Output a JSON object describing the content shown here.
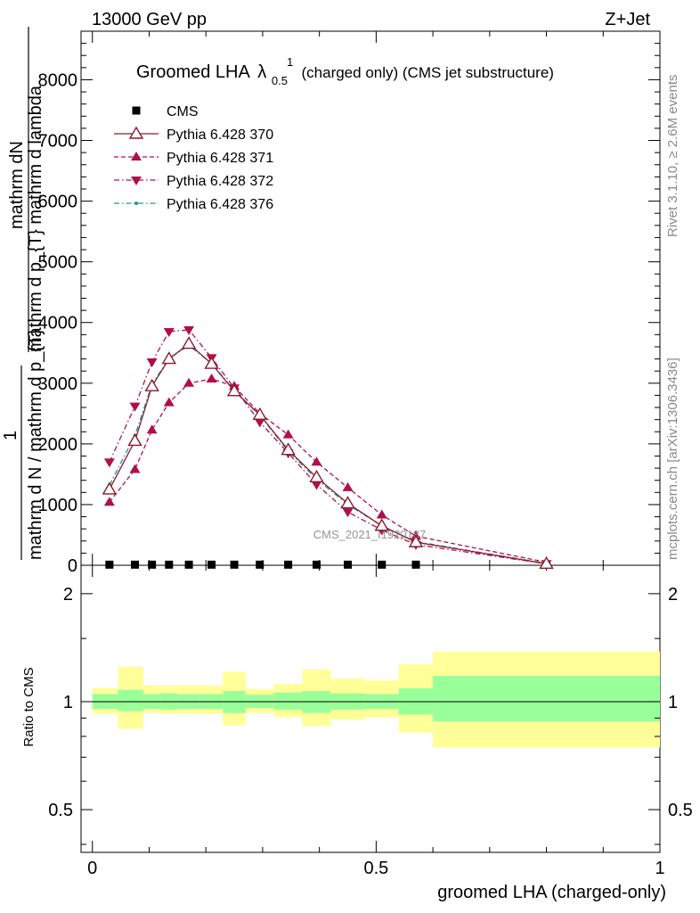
{
  "header": {
    "left": "13000 GeV pp",
    "right": "Z+Jet"
  },
  "plot": {
    "title_main": "Groomed LHA",
    "title_lambda": "λ",
    "title_sup": "1",
    "title_sub": "0.5",
    "title_rest": "(charged only) (CMS jet substructure)",
    "watermark": "CMS_2021_I1920187"
  },
  "side_text": {
    "rivet": "Rivet 3.1.10, ≥ 2.6M events",
    "mcplots": "mcplots.cern.ch [arXiv:1306.3436]"
  },
  "ylabel_main": {
    "numerator": "mathrm dN",
    "denominator": "mathrm d p_{T} mathrm d lambda",
    "one": "1",
    "one_denominator": "mathrm d N / mathrm d p_{T}"
  },
  "ylabel_ratio": "Ratio to CMS",
  "xlabel": "groomed LHA (charged-only)",
  "legend": [
    {
      "name": "CMS",
      "color": "#000000",
      "marker": "square",
      "line": "none"
    },
    {
      "name": "Pythia 6.428 370",
      "color": "#8b1a2e",
      "marker": "triangle-open",
      "line": "solid"
    },
    {
      "name": "Pythia 6.428 371",
      "color": "#b0104a",
      "marker": "triangle-up",
      "line": "dashed"
    },
    {
      "name": "Pythia 6.428 372",
      "color": "#b0104a",
      "marker": "triangle-down",
      "line": "dashdot"
    },
    {
      "name": "Pythia 6.428 376",
      "color": "#1a9a8a",
      "marker": "dot",
      "line": "dashdot"
    }
  ],
  "chart_data": {
    "type": "line",
    "x": [
      0.03,
      0.075,
      0.105,
      0.135,
      0.17,
      0.21,
      0.25,
      0.295,
      0.345,
      0.395,
      0.45,
      0.51,
      0.57,
      0.8
    ],
    "xlim": [
      -0.02,
      1.0
    ],
    "ylim": [
      0,
      8800
    ],
    "yticks": [
      0,
      1000,
      2000,
      3000,
      4000,
      5000,
      6000,
      7000,
      8000
    ],
    "xticks": [
      0,
      0.5,
      1
    ],
    "xtick_labels": [
      "0",
      "0.5",
      "1"
    ],
    "series": [
      {
        "name": "CMS",
        "values": [
          10,
          10,
          10,
          10,
          10,
          10,
          10,
          10,
          10,
          10,
          10,
          10,
          10,
          null
        ]
      },
      {
        "name": "Pythia 6.428 370",
        "values": [
          1250,
          2050,
          2950,
          3400,
          3650,
          3320,
          2870,
          2480,
          1900,
          1450,
          1020,
          650,
          380,
          25
        ]
      },
      {
        "name": "Pythia 6.428 371",
        "values": [
          1040,
          1580,
          2230,
          2680,
          3000,
          3070,
          2950,
          2500,
          2150,
          1700,
          1280,
          830,
          480,
          50
        ]
      },
      {
        "name": "Pythia 6.428 372",
        "values": [
          1700,
          2620,
          3350,
          3850,
          3880,
          3420,
          2920,
          2360,
          1850,
          1330,
          880,
          580,
          340,
          25
        ]
      },
      {
        "name": "Pythia 6.428 376",
        "values": [
          1320,
          2140,
          2980,
          3410,
          3620,
          3330,
          2880,
          2470,
          1880,
          1420,
          1000,
          650,
          390,
          30
        ]
      }
    ],
    "ratio": {
      "ylim": [
        0.38,
        2.4
      ],
      "yticks": [
        0.5,
        1,
        2
      ],
      "ytick_labels": [
        "0.5",
        "1",
        "2"
      ],
      "bin_edges": [
        0,
        0.045,
        0.09,
        0.12,
        0.15,
        0.19,
        0.23,
        0.27,
        0.32,
        0.37,
        0.42,
        0.48,
        0.54,
        0.6,
        1.0
      ],
      "stat_low": [
        0.955,
        0.94,
        0.955,
        0.95,
        0.955,
        0.955,
        0.93,
        0.96,
        0.95,
        0.93,
        0.95,
        0.955,
        0.92,
        0.88
      ],
      "stat_high": [
        1.05,
        1.08,
        1.05,
        1.055,
        1.05,
        1.05,
        1.07,
        1.045,
        1.06,
        1.07,
        1.055,
        1.05,
        1.09,
        1.18
      ],
      "tot_low": [
        0.925,
        0.84,
        0.93,
        0.925,
        0.925,
        0.925,
        0.86,
        0.93,
        0.905,
        0.855,
        0.89,
        0.905,
        0.82,
        0.745
      ],
      "tot_high": [
        1.09,
        1.25,
        1.11,
        1.11,
        1.11,
        1.11,
        1.21,
        1.085,
        1.12,
        1.23,
        1.16,
        1.145,
        1.27,
        1.38
      ],
      "stat_color": "#99ff99",
      "tot_color": "#ffff99"
    }
  }
}
